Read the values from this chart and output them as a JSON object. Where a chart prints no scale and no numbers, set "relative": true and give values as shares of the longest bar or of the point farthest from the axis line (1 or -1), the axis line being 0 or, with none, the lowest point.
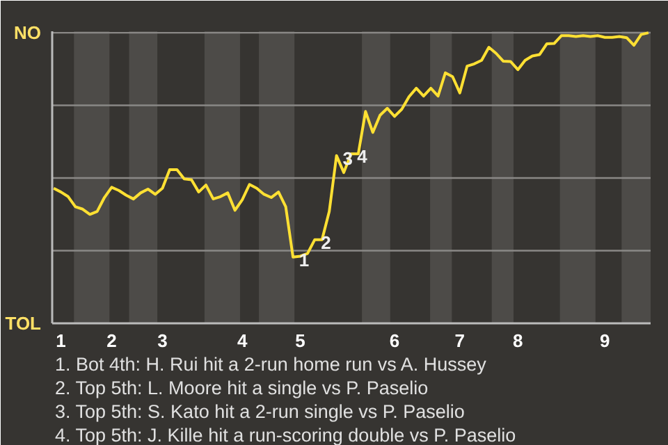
{
  "chart_data": {
    "type": "line",
    "relative": true,
    "categories": [
      null,
      "1",
      null,
      null,
      null,
      null,
      null,
      null,
      "2",
      null,
      null,
      null,
      null,
      null,
      null,
      "3",
      null,
      null,
      null,
      null,
      null,
      null,
      null,
      null,
      null,
      null,
      "4",
      null,
      null,
      null,
      null,
      null,
      null,
      null,
      "5",
      null,
      null,
      null,
      null,
      null,
      null,
      null,
      null,
      null,
      null,
      null,
      null,
      "6",
      null,
      null,
      null,
      null,
      null,
      null,
      null,
      null,
      "7",
      null,
      null,
      null,
      null,
      null,
      null,
      null,
      "8",
      null,
      null,
      null,
      null,
      null,
      null,
      null,
      null,
      null,
      null,
      null,
      "9",
      null,
      null,
      null,
      null,
      null,
      null
    ],
    "series": [
      {
        "color": "#ffe033",
        "values": [
          0.465,
          0.452,
          0.436,
          0.401,
          0.393,
          0.375,
          0.385,
          0.433,
          0.468,
          0.457,
          0.441,
          0.428,
          0.449,
          0.462,
          0.444,
          0.465,
          0.529,
          0.529,
          0.497,
          0.494,
          0.452,
          0.476,
          0.428,
          0.436,
          0.449,
          0.389,
          0.425,
          0.478,
          0.465,
          0.444,
          0.433,
          0.452,
          0.401,
          0.228,
          0.231,
          0.24,
          0.288,
          0.288,
          0.385,
          0.577,
          0.519,
          0.583,
          0.583,
          0.729,
          0.657,
          0.716,
          0.74,
          0.712,
          0.737,
          0.78,
          0.809,
          0.782,
          0.809,
          0.782,
          0.862,
          0.849,
          0.793,
          0.885,
          0.893,
          0.905,
          0.95,
          0.929,
          0.902,
          0.901,
          0.873,
          0.905,
          0.92,
          0.925,
          0.962,
          0.963,
          0.99,
          0.99,
          0.987,
          0.99,
          0.987,
          0.99,
          0.984,
          0.984,
          0.987,
          0.983,
          0.957,
          0.994,
          1.0
        ]
      }
    ],
    "grid": "y",
    "annotations": [
      "NO",
      "TOL",
      {
        "text": "1",
        "y": 0.228
      },
      {
        "text": "2",
        "y": 0.288
      },
      {
        "text": "3",
        "y": 0.577
      },
      {
        "text": "4",
        "y": 0.583
      },
      "1. Bot 4th: H. Rui hit a 2-run home run vs A. Hussey",
      "2. Top 5th: L. Moore hit a single vs P. Paselio",
      "3. Top 5th: S. Kato hit a 2-run single vs P. Paselio",
      "4. Top 5th: J. Kille hit a run-scoring double vs P. Paselio"
    ]
  }
}
